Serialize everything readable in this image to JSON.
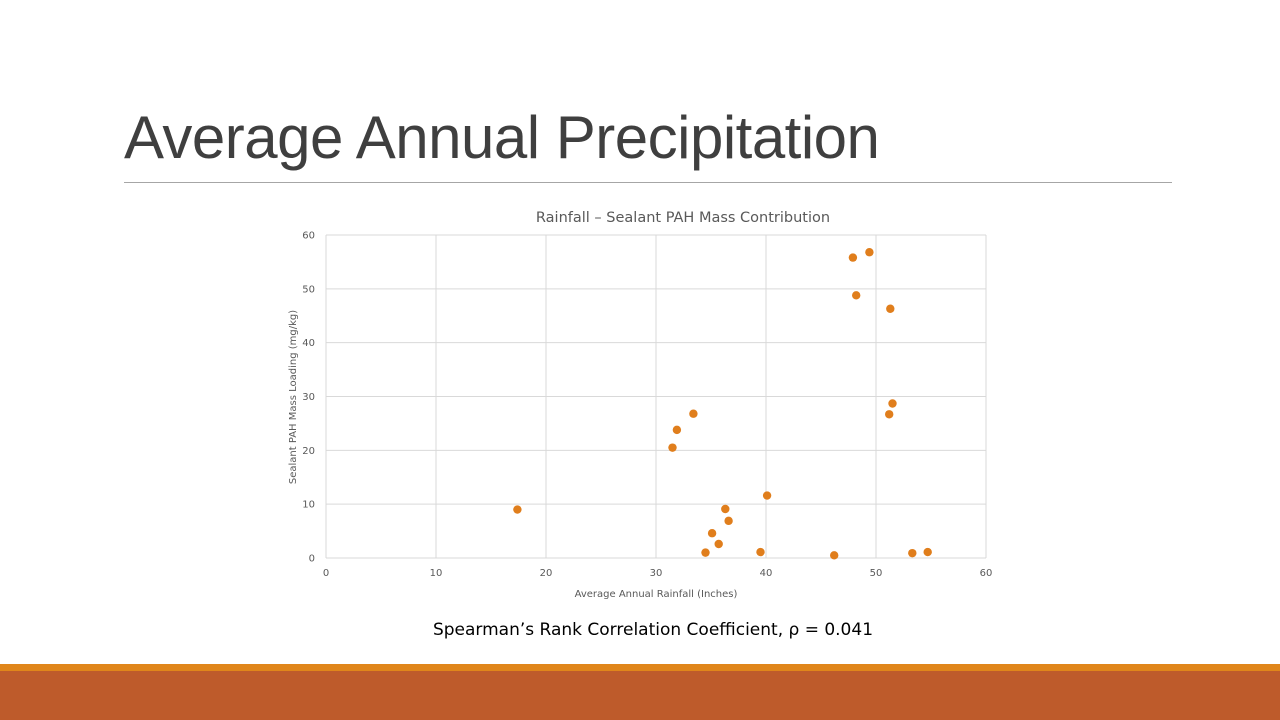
{
  "slide": {
    "title": "Average Annual Precipitation",
    "caption": "Spearman’s Rank Correlation Coefficient, ρ = 0.041"
  },
  "colors": {
    "marker": "#E07E1C",
    "footer_strip": "#E0861A",
    "footer_band": "#BE5B2B",
    "grid": "#d9d9d9",
    "text": "#595959"
  },
  "chart_data": {
    "type": "scatter",
    "title": "Rainfall – Sealant PAH Mass Contribution",
    "xlabel": "Average Annual Rainfall (Inches)",
    "ylabel": "Sealant PAH Mass Loading (mg/kg)",
    "xlim": [
      0,
      60
    ],
    "ylim": [
      0,
      60
    ],
    "xticks": [
      0,
      10,
      20,
      30,
      40,
      50,
      60
    ],
    "yticks": [
      0,
      10,
      20,
      30,
      40,
      50,
      60
    ],
    "grid": true,
    "legend": "none",
    "points": [
      {
        "x": 17.4,
        "y": 9.0
      },
      {
        "x": 31.5,
        "y": 20.5
      },
      {
        "x": 31.9,
        "y": 23.8
      },
      {
        "x": 33.4,
        "y": 26.8
      },
      {
        "x": 34.5,
        "y": 1.0
      },
      {
        "x": 35.1,
        "y": 4.6
      },
      {
        "x": 35.7,
        "y": 2.6
      },
      {
        "x": 36.3,
        "y": 9.1
      },
      {
        "x": 36.6,
        "y": 6.9
      },
      {
        "x": 39.5,
        "y": 1.1
      },
      {
        "x": 40.1,
        "y": 11.6
      },
      {
        "x": 46.2,
        "y": 0.5
      },
      {
        "x": 47.9,
        "y": 55.8
      },
      {
        "x": 48.2,
        "y": 48.8
      },
      {
        "x": 49.4,
        "y": 56.8
      },
      {
        "x": 51.2,
        "y": 26.7
      },
      {
        "x": 51.3,
        "y": 46.3
      },
      {
        "x": 51.5,
        "y": 28.7
      },
      {
        "x": 53.3,
        "y": 0.9
      },
      {
        "x": 54.7,
        "y": 1.1
      }
    ]
  }
}
